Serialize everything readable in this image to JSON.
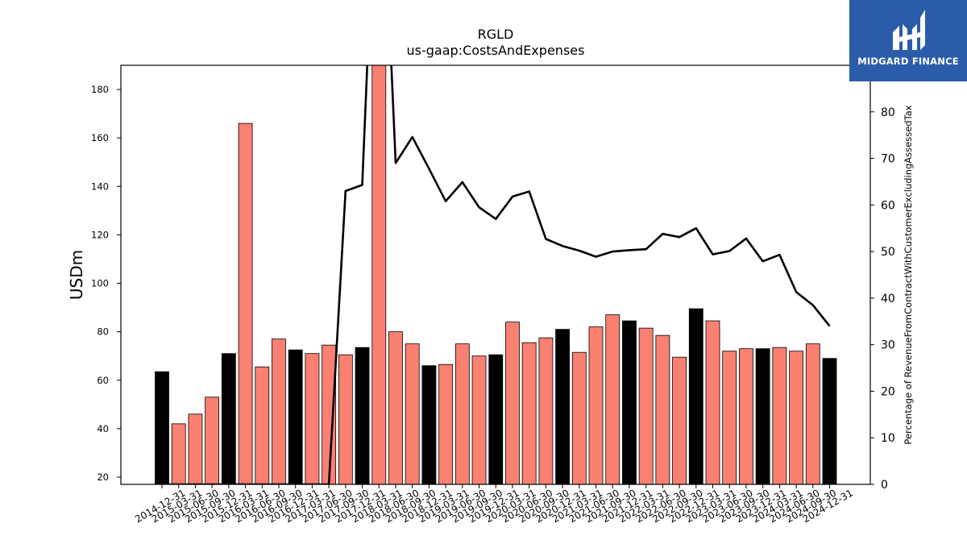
{
  "chart_data": {
    "type": "bar",
    "title": "RGLD",
    "subtitle": "us-gaap:CostsAndExpenses",
    "ylabel": "USDm",
    "y2label": "Percentage of RevenueFromContractWithCustomerExcludingAssessedTax",
    "ylim": [
      17,
      190
    ],
    "y2lim": [
      0,
      90
    ],
    "yticks": [
      20,
      40,
      60,
      80,
      100,
      120,
      140,
      160,
      180
    ],
    "y2ticks": [
      0,
      10,
      20,
      30,
      40,
      50,
      60,
      70,
      80
    ],
    "grid": false,
    "categories": [
      "2014-12-31",
      "2015-03-31",
      "2015-06-30",
      "2015-09-30",
      "2015-12-31",
      "2016-03-31",
      "2016-06-30",
      "2016-09-30",
      "2016-12-31",
      "2017-03-31",
      "2017-06-30",
      "2017-09-30",
      "2017-12-31",
      "2018-03-31",
      "2018-06-30",
      "2018-09-30",
      "2018-12-31",
      "2019-03-31",
      "2019-06-30",
      "2019-09-30",
      "2019-12-31",
      "2020-03-31",
      "2020-06-30",
      "2020-09-30",
      "2020-12-31",
      "2021-03-31",
      "2021-06-30",
      "2021-09-30",
      "2021-12-31",
      "2022-03-31",
      "2022-06-30",
      "2022-09-30",
      "2022-12-31",
      "2023-03-31",
      "2023-06-30",
      "2023-09-30",
      "2023-12-31",
      "2024-03-31",
      "2024-06-30",
      "2024-09-30",
      "2024-12-31"
    ],
    "series": [
      {
        "type": "bar",
        "values": [
          63.5,
          42,
          46,
          53,
          71,
          166,
          65.5,
          77,
          72.5,
          71,
          74.5,
          70.5,
          73.5,
          200,
          80,
          75,
          66,
          66.5,
          75,
          70,
          70.5,
          84,
          75.5,
          77.5,
          81,
          71.5,
          82,
          87,
          84.5,
          81.5,
          78.5,
          69.5,
          89.5,
          84.5,
          72,
          73,
          73,
          73.5,
          72,
          75,
          69
        ],
        "highlight": [
          true,
          false,
          false,
          false,
          true,
          false,
          false,
          false,
          true,
          false,
          false,
          false,
          true,
          false,
          false,
          false,
          true,
          false,
          false,
          false,
          true,
          false,
          false,
          false,
          true,
          false,
          false,
          false,
          true,
          false,
          false,
          false,
          true,
          false,
          false,
          false,
          true,
          false,
          false,
          false,
          true
        ]
      },
      {
        "type": "line",
        "axis": "right",
        "values": [
          0,
          0,
          0,
          0,
          0,
          0,
          0,
          0,
          0,
          0,
          0,
          63,
          64.3,
          150,
          69,
          74.6,
          67.8,
          60.8,
          64.9,
          59.5,
          57,
          61.8,
          62.9,
          52.7,
          51.2,
          50.2,
          48.9,
          50,
          50.3,
          50.5,
          53.8,
          53.1,
          55,
          49.4,
          50.1,
          52.8,
          47.9,
          49.3,
          41.3,
          38.5,
          34
        ]
      }
    ],
    "colors": {
      "bar": "#fa8072",
      "bar_highlight": "#000000",
      "line": "#000000"
    }
  },
  "brand": {
    "name": "MIDGARD FINANCE",
    "color": "#2a5caa"
  }
}
